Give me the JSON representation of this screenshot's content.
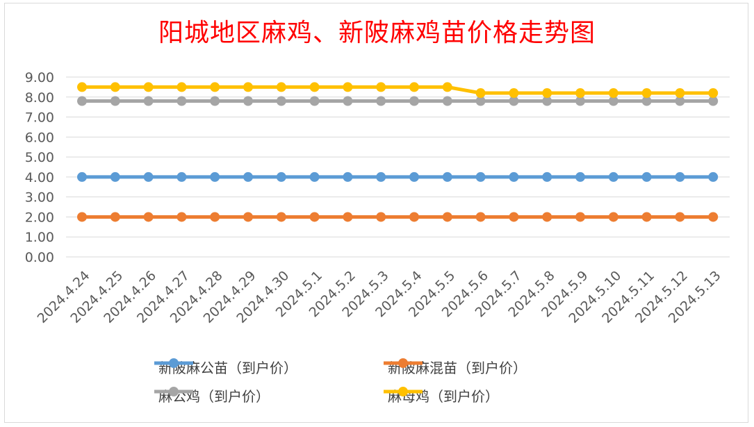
{
  "chart_data": {
    "type": "line",
    "title": "阳城地区麻鸡、新陂麻鸡苗价格走势图",
    "categories": [
      "2024.4.24",
      "2024.4.25",
      "2024.4.26",
      "2024.4.27",
      "2024.4.28",
      "2024.4.29",
      "2024.4.30",
      "2024.5.1",
      "2024.5.2",
      "2024.5.3",
      "2024.5.4",
      "2024.5.5",
      "2024.5.6",
      "2024.5.7",
      "2024.5.8",
      "2024.5.9",
      "2024.5.10",
      "2024.5.11",
      "2024.5.12",
      "2024.5.13"
    ],
    "yticks": [
      "0.00",
      "1.00",
      "2.00",
      "3.00",
      "4.00",
      "5.00",
      "6.00",
      "7.00",
      "8.00",
      "9.00"
    ],
    "ylim": [
      0,
      9
    ],
    "grid": true,
    "legend_position": "bottom",
    "series": [
      {
        "name": "新陂麻公苗（到户价）",
        "color": "#5b9bd5",
        "values": [
          4,
          4,
          4,
          4,
          4,
          4,
          4,
          4,
          4,
          4,
          4,
          4,
          4,
          4,
          4,
          4,
          4,
          4,
          4,
          4
        ]
      },
      {
        "name": "新陂麻混苗（到户价）",
        "color": "#ed7d31",
        "values": [
          2,
          2,
          2,
          2,
          2,
          2,
          2,
          2,
          2,
          2,
          2,
          2,
          2,
          2,
          2,
          2,
          2,
          2,
          2,
          2
        ]
      },
      {
        "name": "麻公鸡（到户价）",
        "color": "#a5a5a5",
        "values": [
          7.8,
          7.8,
          7.8,
          7.8,
          7.8,
          7.8,
          7.8,
          7.8,
          7.8,
          7.8,
          7.8,
          7.8,
          7.8,
          7.8,
          7.8,
          7.8,
          7.8,
          7.8,
          7.8,
          7.8
        ]
      },
      {
        "name": "麻母鸡（到户价）",
        "color": "#ffc000",
        "values": [
          8.5,
          8.5,
          8.5,
          8.5,
          8.5,
          8.5,
          8.5,
          8.5,
          8.5,
          8.5,
          8.5,
          8.5,
          8.2,
          8.2,
          8.2,
          8.2,
          8.2,
          8.2,
          8.2,
          8.2
        ]
      }
    ]
  }
}
